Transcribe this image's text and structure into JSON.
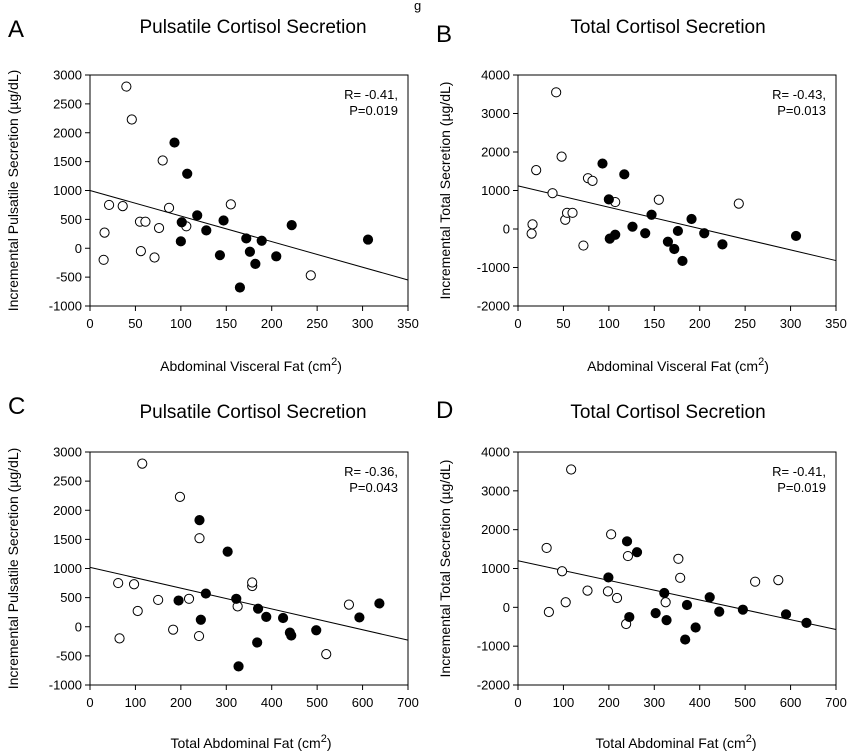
{
  "figure": {
    "top_fragment": "g"
  },
  "chart_data": [
    {
      "panel": "A",
      "type": "scatter",
      "title": "Pulsatile Cortisol Secretion",
      "xlabel": "Abdominal Visceral Fat (cm",
      "xlabel_sup": "2",
      "xlabel_tail": ")",
      "ylabel": "Incremental Pulsatile Secretion (µg/dL)",
      "xlim": [
        0,
        350
      ],
      "ylim": [
        -1000,
        3000
      ],
      "xticks": [
        0,
        50,
        100,
        150,
        200,
        250,
        300,
        350
      ],
      "yticks": [
        -1000,
        -500,
        0,
        500,
        1000,
        1500,
        2000,
        2500,
        3000
      ],
      "stat_lines": [
        "R= -0.41,",
        "P=0.019"
      ],
      "regression": {
        "x": [
          0,
          350
        ],
        "y": [
          1000,
          -550
        ]
      },
      "series": [
        {
          "marker": "open",
          "points": [
            [
              15,
              -200
            ],
            [
              16,
              270
            ],
            [
              21,
              750
            ],
            [
              36,
              730
            ],
            [
              40,
              2800
            ],
            [
              46,
              2230
            ],
            [
              55,
              460
            ],
            [
              56,
              -50
            ],
            [
              61,
              460
            ],
            [
              71,
              -160
            ],
            [
              76,
              350
            ],
            [
              80,
              1520
            ],
            [
              87,
              700
            ],
            [
              106,
              380
            ],
            [
              155,
              760
            ],
            [
              243,
              -470
            ]
          ]
        },
        {
          "marker": "filled",
          "points": [
            [
              93,
              1830
            ],
            [
              100,
              120
            ],
            [
              101,
              450
            ],
            [
              107,
              1290
            ],
            [
              118,
              570
            ],
            [
              128,
              310
            ],
            [
              147,
              480
            ],
            [
              143,
              -120
            ],
            [
              165,
              -680
            ],
            [
              172,
              170
            ],
            [
              176,
              -60
            ],
            [
              182,
              -270
            ],
            [
              189,
              130
            ],
            [
              205,
              -140
            ],
            [
              222,
              400
            ],
            [
              306,
              150
            ]
          ]
        }
      ]
    },
    {
      "panel": "B",
      "type": "scatter",
      "title": "Total Cortisol Secretion",
      "xlabel": "Abdominal Visceral Fat (cm",
      "xlabel_sup": "2",
      "xlabel_tail": ")",
      "ylabel": "Incremental Total Secretion (µg/dL)",
      "xlim": [
        0,
        350
      ],
      "ylim": [
        -2000,
        4000
      ],
      "xticks": [
        0,
        50,
        100,
        150,
        200,
        250,
        300,
        350
      ],
      "yticks": [
        -2000,
        -1000,
        0,
        1000,
        2000,
        3000,
        4000
      ],
      "stat_lines": [
        "R= -0.43,",
        "P=0.013"
      ],
      "regression": {
        "x": [
          0,
          350
        ],
        "y": [
          1120,
          -820
        ]
      },
      "series": [
        {
          "marker": "open",
          "points": [
            [
              15,
              -120
            ],
            [
              16,
              120
            ],
            [
              20,
              1530
            ],
            [
              38,
              930
            ],
            [
              42,
              3550
            ],
            [
              48,
              1880
            ],
            [
              52,
              240
            ],
            [
              54,
              420
            ],
            [
              60,
              420
            ],
            [
              72,
              -430
            ],
            [
              77,
              1320
            ],
            [
              82,
              1250
            ],
            [
              107,
              700
            ],
            [
              155,
              760
            ],
            [
              243,
              660
            ]
          ]
        },
        {
          "marker": "filled",
          "points": [
            [
              93,
              1700
            ],
            [
              100,
              770
            ],
            [
              101,
              -250
            ],
            [
              107,
              -150
            ],
            [
              117,
              1420
            ],
            [
              126,
              60
            ],
            [
              140,
              -110
            ],
            [
              147,
              370
            ],
            [
              165,
              -330
            ],
            [
              172,
              -520
            ],
            [
              176,
              -50
            ],
            [
              181,
              -830
            ],
            [
              191,
              260
            ],
            [
              205,
              -110
            ],
            [
              225,
              -400
            ],
            [
              306,
              -180
            ]
          ]
        }
      ]
    },
    {
      "panel": "C",
      "type": "scatter",
      "title": "Pulsatile Cortisol Secretion",
      "xlabel": "Total Abdominal Fat (cm",
      "xlabel_sup": "2",
      "xlabel_tail": ")",
      "ylabel": "Incremental Pulsatile Secretion (µg/dL)",
      "xlim": [
        0,
        700
      ],
      "ylim": [
        -1000,
        3000
      ],
      "xticks": [
        0,
        100,
        200,
        300,
        400,
        500,
        600,
        700
      ],
      "yticks": [
        -1000,
        -500,
        0,
        500,
        1000,
        1500,
        2000,
        2500,
        3000
      ],
      "stat_lines": [
        "R= -0.36,",
        "P=0.043"
      ],
      "regression": {
        "x": [
          0,
          700
        ],
        "y": [
          1020,
          -230
        ]
      },
      "series": [
        {
          "marker": "open",
          "points": [
            [
              62,
              750
            ],
            [
              65,
              -200
            ],
            [
              97,
              730
            ],
            [
              105,
              270
            ],
            [
              115,
              2800
            ],
            [
              150,
              460
            ],
            [
              183,
              -50
            ],
            [
              198,
              2230
            ],
            [
              218,
              480
            ],
            [
              240,
              -160
            ],
            [
              241,
              1520
            ],
            [
              325,
              350
            ],
            [
              357,
              700
            ],
            [
              357,
              760
            ],
            [
              570,
              380
            ],
            [
              520,
              -470
            ]
          ]
        },
        {
          "marker": "filled",
          "points": [
            [
              195,
              450
            ],
            [
              241,
              1830
            ],
            [
              244,
              120
            ],
            [
              255,
              570
            ],
            [
              303,
              1290
            ],
            [
              322,
              480
            ],
            [
              327,
              -680
            ],
            [
              368,
              -270
            ],
            [
              370,
              310
            ],
            [
              388,
              170
            ],
            [
              425,
              150
            ],
            [
              440,
              -100
            ],
            [
              443,
              -150
            ],
            [
              498,
              -60
            ],
            [
              593,
              160
            ],
            [
              637,
              400
            ]
          ]
        }
      ]
    },
    {
      "panel": "D",
      "type": "scatter",
      "title": "Total Cortisol Secretion",
      "xlabel": "Total Abdominal Fat (cm",
      "xlabel_sup": "2",
      "xlabel_tail": ")",
      "ylabel": "Incremental Total Secretion (µg/dL)",
      "xlim": [
        0,
        700
      ],
      "ylim": [
        -2000,
        4000
      ],
      "xticks": [
        0,
        100,
        200,
        300,
        400,
        500,
        600,
        700
      ],
      "yticks": [
        -2000,
        -1000,
        0,
        1000,
        2000,
        3000,
        4000
      ],
      "stat_lines": [
        "R= -0.41,",
        "P=0.019"
      ],
      "regression": {
        "x": [
          0,
          700
        ],
        "y": [
          1200,
          -570
        ]
      },
      "series": [
        {
          "marker": "open",
          "points": [
            [
              63,
              1530
            ],
            [
              68,
              -120
            ],
            [
              97,
              930
            ],
            [
              105,
              130
            ],
            [
              117,
              3550
            ],
            [
              153,
              430
            ],
            [
              198,
              410
            ],
            [
              205,
              1880
            ],
            [
              218,
              240
            ],
            [
              238,
              -430
            ],
            [
              242,
              1320
            ],
            [
              325,
              130
            ],
            [
              353,
              1250
            ],
            [
              357,
              760
            ],
            [
              522,
              660
            ],
            [
              573,
              700
            ]
          ]
        },
        {
          "marker": "filled",
          "points": [
            [
              199,
              770
            ],
            [
              240,
              1700
            ],
            [
              245,
              -250
            ],
            [
              262,
              1420
            ],
            [
              303,
              -150
            ],
            [
              322,
              370
            ],
            [
              327,
              -330
            ],
            [
              368,
              -830
            ],
            [
              372,
              60
            ],
            [
              391,
              -520
            ],
            [
              422,
              260
            ],
            [
              443,
              -110
            ],
            [
              495,
              -60
            ],
            [
              590,
              -180
            ],
            [
              635,
              -400
            ]
          ]
        }
      ]
    }
  ]
}
